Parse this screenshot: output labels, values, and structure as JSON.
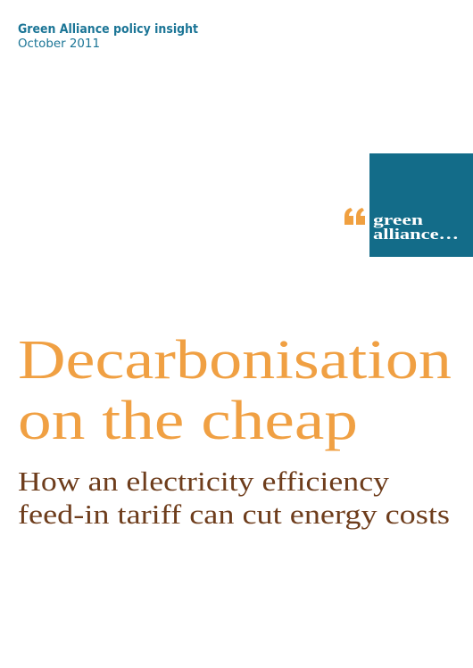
{
  "header": {
    "series": "Green Alliance policy insight",
    "date": "October 2011"
  },
  "logo": {
    "lines": [
      "green",
      "alliance…"
    ]
  },
  "title": {
    "lines": [
      "Decarbonisation",
      "on the cheap"
    ]
  },
  "subtitle": {
    "lines": [
      "How an electricity efficiency",
      "feed-in tariff can cut energy costs"
    ]
  }
}
